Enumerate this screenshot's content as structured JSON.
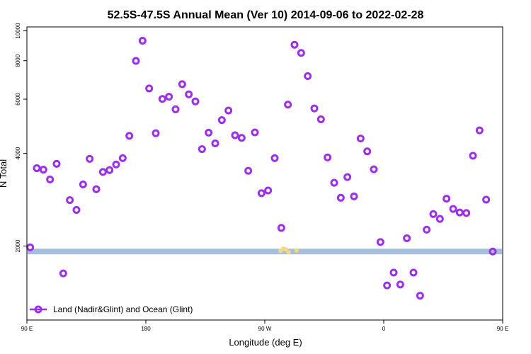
{
  "chart_data": {
    "type": "scatter",
    "title": "52.5S-47.5S Annual Mean (Ver 10)   2014-09-06 to 2022-02-28",
    "xlabel": "Longitude (deg E)",
    "ylabel": "N Total",
    "x_axis": {
      "range_deg_east": [
        90,
        450
      ],
      "ticks": [
        {
          "value": 90,
          "label": "90 E"
        },
        {
          "value": 180,
          "label": "180"
        },
        {
          "value": 270,
          "label": "90 W"
        },
        {
          "value": 360,
          "label": "0"
        },
        {
          "value": 450,
          "label": "90 E"
        },
        {
          "value": 540,
          "label": "180"
        }
      ]
    },
    "y_axis": {
      "scale": "log",
      "range": [
        1150,
        10300
      ],
      "ticks": [
        {
          "value": 2000,
          "label": "2000"
        },
        {
          "value": 4000,
          "label": "4000"
        },
        {
          "value": 6000,
          "label": "6000"
        },
        {
          "value": 8000,
          "label": "8000"
        },
        {
          "value": 10000,
          "label": "10000"
        }
      ]
    },
    "grid": false,
    "band": {
      "y_range": [
        1880,
        1960
      ],
      "color": "#a6bddb"
    },
    "land_marks": [
      {
        "x": 282,
        "y": 1930
      },
      {
        "x": 284,
        "y": 1960
      },
      {
        "x": 288,
        "y": 1910
      },
      {
        "x": 286,
        "y": 1950
      },
      {
        "x": 294,
        "y": 1935
      }
    ],
    "land_color": "#f5d78a",
    "marker_color": "#9b30e8",
    "legend": {
      "position": "bottom-left",
      "entries": [
        "Land (Nadir&Glint) and Ocean (Glint)"
      ]
    },
    "series": [
      {
        "name": "Land (Nadir&Glint) and Ocean (Glint)",
        "points": [
          [
            92.5,
            1980
          ],
          [
            97.5,
            3580
          ],
          [
            102.5,
            3540
          ],
          [
            107.5,
            3290
          ],
          [
            112.5,
            3700
          ],
          [
            117.5,
            1630
          ],
          [
            122.5,
            2820
          ],
          [
            127.5,
            2620
          ],
          [
            132.5,
            3170
          ],
          [
            137.5,
            3840
          ],
          [
            142.5,
            3060
          ],
          [
            147.5,
            3480
          ],
          [
            152.5,
            3530
          ],
          [
            157.5,
            3680
          ],
          [
            162.5,
            3860
          ],
          [
            167.5,
            4560
          ],
          [
            172.5,
            7990
          ],
          [
            177.5,
            9290
          ],
          [
            182.5,
            6500
          ],
          [
            187.5,
            4650
          ],
          [
            192.5,
            6010
          ],
          [
            197.5,
            6110
          ],
          [
            202.5,
            5560
          ],
          [
            207.5,
            6710
          ],
          [
            212.5,
            6220
          ],
          [
            217.5,
            5900
          ],
          [
            222.5,
            4130
          ],
          [
            227.5,
            4670
          ],
          [
            232.5,
            4310
          ],
          [
            237.5,
            5130
          ],
          [
            242.5,
            5510
          ],
          [
            247.5,
            4580
          ],
          [
            252.5,
            4490
          ],
          [
            257.5,
            3510
          ],
          [
            262.5,
            4680
          ],
          [
            267.5,
            2970
          ],
          [
            272.5,
            3030
          ],
          [
            277.5,
            3860
          ],
          [
            282.5,
            2290
          ],
          [
            287.5,
            5760
          ],
          [
            292.5,
            9010
          ],
          [
            297.5,
            8480
          ],
          [
            302.5,
            7130
          ],
          [
            307.5,
            5600
          ],
          [
            312.5,
            5160
          ],
          [
            317.5,
            3880
          ],
          [
            322.5,
            3210
          ],
          [
            327.5,
            2870
          ],
          [
            332.5,
            3350
          ],
          [
            337.5,
            2900
          ],
          [
            342.5,
            4470
          ],
          [
            347.5,
            4060
          ],
          [
            352.5,
            3550
          ],
          [
            357.5,
            2060
          ],
          [
            362.5,
            1490
          ],
          [
            367.5,
            1640
          ],
          [
            372.5,
            1500
          ],
          [
            377.5,
            2120
          ],
          [
            382.5,
            1640
          ],
          [
            387.5,
            1380
          ],
          [
            392.5,
            2260
          ],
          [
            397.5,
            2540
          ],
          [
            402.5,
            2450
          ],
          [
            407.5,
            2850
          ],
          [
            412.5,
            2640
          ],
          [
            417.5,
            2570
          ],
          [
            422.5,
            2560
          ],
          [
            427.5,
            3930
          ],
          [
            432.5,
            4750
          ],
          [
            437.5,
            2830
          ],
          [
            442.5,
            1920
          ]
        ]
      }
    ]
  }
}
